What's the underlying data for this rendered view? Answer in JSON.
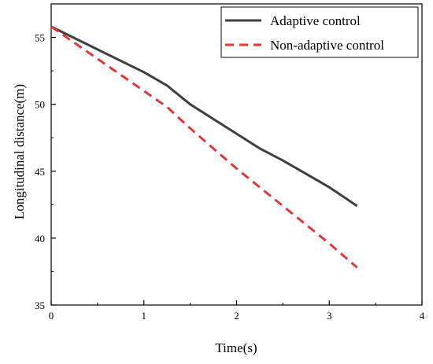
{
  "chart_data": {
    "type": "line",
    "xlabel": "Time(s)",
    "ylabel": "Longitudinal distance(m)",
    "xlim": [
      0,
      4
    ],
    "ylim": [
      35,
      57.5
    ],
    "xticks": [
      0,
      1,
      2,
      3,
      4
    ],
    "yticks": [
      35,
      40,
      45,
      50,
      55
    ],
    "grid": false,
    "legend_position": "top-right",
    "series": [
      {
        "name": "Adaptive control",
        "color": "#404040",
        "style": "solid",
        "x": [
          0,
          0.5,
          1.0,
          1.25,
          1.5,
          2.0,
          2.25,
          2.5,
          3.0,
          3.3
        ],
        "y": [
          55.8,
          54.1,
          52.4,
          51.4,
          50.0,
          47.8,
          46.7,
          45.8,
          43.8,
          42.4
        ]
      },
      {
        "name": "Non-adaptive control",
        "color": "#e0393b",
        "style": "dashed",
        "x": [
          0,
          0.5,
          1.0,
          1.25,
          1.5,
          2.0,
          2.5,
          3.0,
          3.3
        ],
        "y": [
          55.8,
          53.4,
          51.0,
          49.8,
          48.2,
          45.2,
          42.4,
          39.6,
          37.8
        ]
      }
    ]
  }
}
